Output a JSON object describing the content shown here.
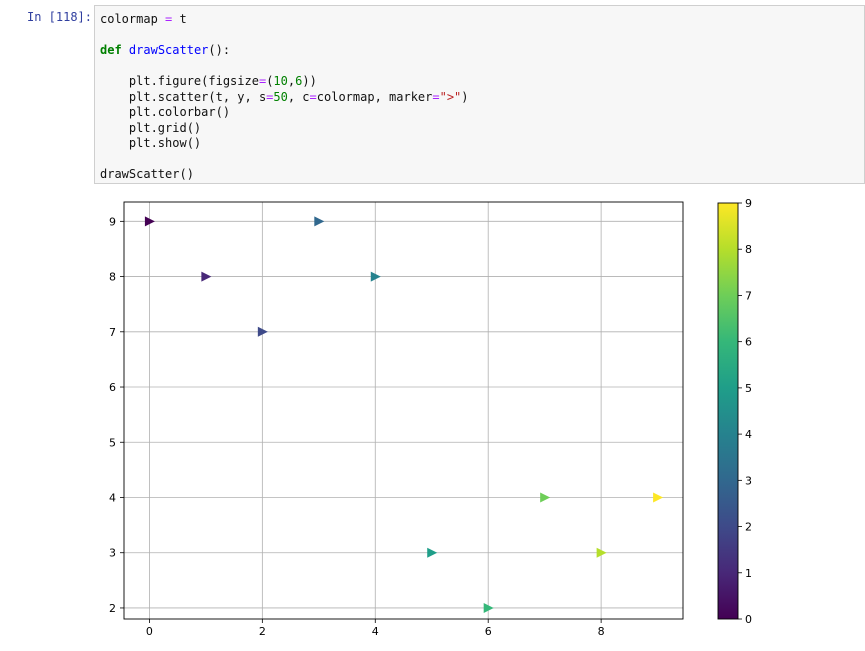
{
  "cell": {
    "prompt": "In [118]:",
    "code": {
      "l1_a": "colormap ",
      "l1_op": "=",
      "l1_b": " t",
      "l2_kw": "def",
      "l2_fn": "drawScatter",
      "l2_rest": "():",
      "l3_a": "    plt.figure(figsize",
      "l3_op": "=",
      "l3_b": "(",
      "l3_n1": "10",
      "l3_c": ",",
      "l3_n2": "6",
      "l3_d": "))",
      "l4_a": "    plt.scatter(t, y, s",
      "l4_op1": "=",
      "l4_n": "50",
      "l4_b": ", c",
      "l4_op2": "=",
      "l4_c": "colormap, marker",
      "l4_op3": "=",
      "l4_s": "\">\"",
      "l4_d": ")",
      "l5": "    plt.colorbar()",
      "l6": "    plt.grid()",
      "l7": "    plt.show()",
      "l8": "drawScatter()"
    }
  },
  "chart_data": {
    "type": "scatter",
    "marker": "triangle-right",
    "x": [
      0,
      1,
      2,
      3,
      4,
      5,
      6,
      7,
      8,
      9
    ],
    "y": [
      9,
      8,
      7,
      9,
      8,
      3,
      2,
      4,
      3,
      4
    ],
    "color_values": [
      0,
      1,
      2,
      3,
      4,
      5,
      6,
      7,
      8,
      9
    ],
    "colormap": "viridis",
    "xlim": [
      -0.45,
      9.45
    ],
    "ylim": [
      1.8,
      9.35
    ],
    "xticks": [
      0,
      2,
      4,
      6,
      8
    ],
    "yticks": [
      2,
      3,
      4,
      5,
      6,
      7,
      8,
      9
    ],
    "colorbar": {
      "range": [
        0,
        9
      ],
      "ticks": [
        0,
        1,
        2,
        3,
        4,
        5,
        6,
        7,
        8,
        9
      ]
    },
    "grid": true,
    "point_colors": [
      "#440154",
      "#482878",
      "#3e4a89",
      "#31688e",
      "#26828e",
      "#1f9e89",
      "#35b779",
      "#6ece58",
      "#b5de2b",
      "#fde725"
    ]
  }
}
